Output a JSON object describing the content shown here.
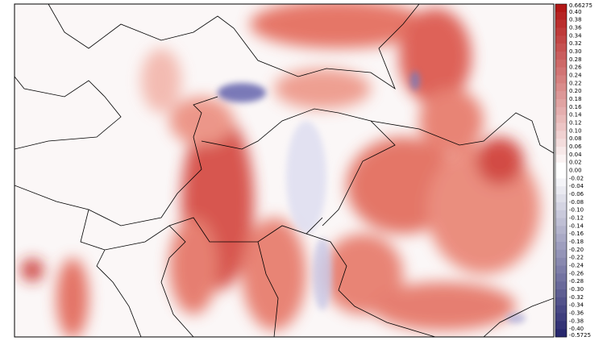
{
  "colorbar": {
    "labels": [
      "0.66275",
      "0.40",
      "0.38",
      "0.36",
      "0.34",
      "0.32",
      "0.30",
      "0.28",
      "0.26",
      "0.24",
      "0.22",
      "0.20",
      "0.18",
      "0.16",
      "0.14",
      "0.12",
      "0.10",
      "0.08",
      "0.06",
      "0.04",
      "0.02",
      "0.00",
      "-0.02",
      "-0.04",
      "-0.06",
      "-0.08",
      "-0.10",
      "-0.12",
      "-0.14",
      "-0.16",
      "-0.18",
      "-0.20",
      "-0.22",
      "-0.24",
      "-0.26",
      "-0.28",
      "-0.30",
      "-0.32",
      "-0.34",
      "-0.36",
      "-0.38",
      "-0.40",
      "-0.5725"
    ]
  }
}
